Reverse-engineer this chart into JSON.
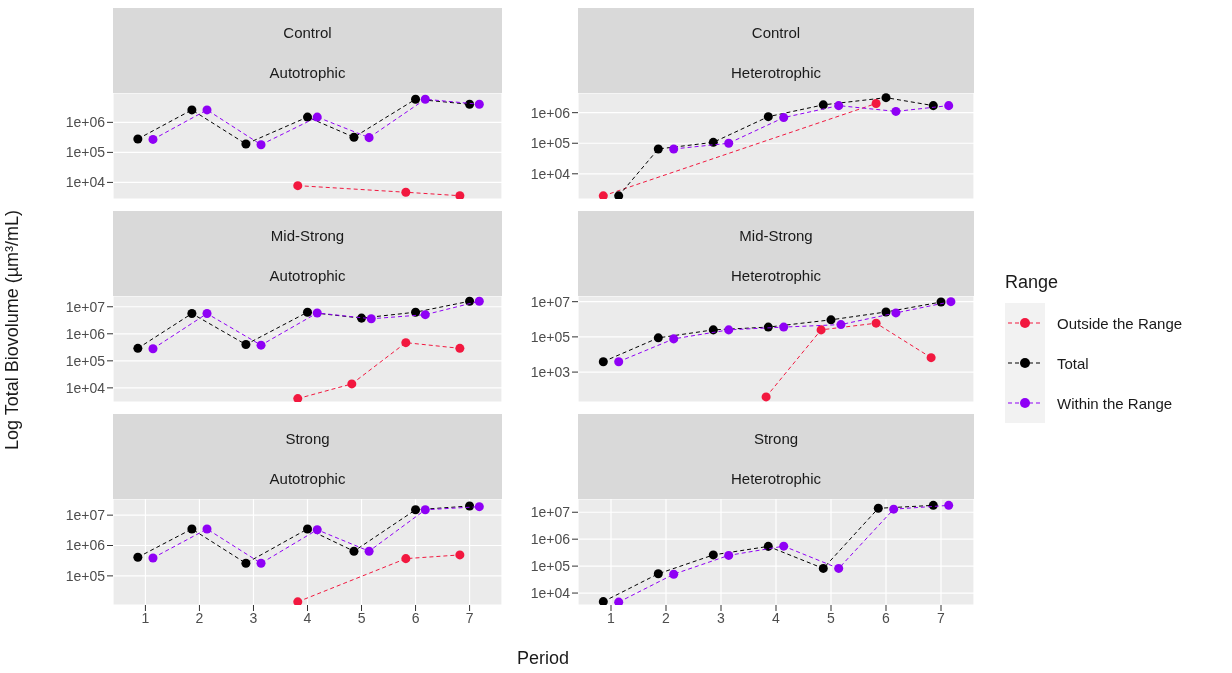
{
  "chart_data": [
    {
      "type": "line",
      "title": "Control",
      "subtitle": "Autotrophic",
      "xlim": [
        0.4,
        7.6
      ],
      "xticks": [
        1,
        2,
        3,
        4,
        5,
        6,
        7
      ],
      "log": true,
      "ylim": [
        2800,
        9500000
      ],
      "yticks": [
        {
          "value": 10000,
          "label": "1e+04"
        },
        {
          "value": 100000,
          "label": "1e+05"
        },
        {
          "value": 1000000,
          "label": "1e+06"
        }
      ],
      "grid": true,
      "marker": "circle",
      "line_style": "dashed",
      "tick_labels": "y",
      "legend": "right",
      "legend_title": "Range",
      "series": [
        {
          "name": "Outside the Range",
          "color": "#f2183f",
          "x": [
            3.82,
            5.82,
            6.82
          ],
          "values": [
            7800,
            4700,
            3600
          ]
        },
        {
          "name": "Total",
          "color": "#000000",
          "x": [
            0.86,
            1.86,
            2.86,
            4,
            4.86,
            6,
            7
          ],
          "values": [
            280000,
            2600000,
            190000,
            1500000,
            320000,
            5900000,
            4000000
          ]
        },
        {
          "name": "Within the Range",
          "color": "#8f00f5",
          "x": [
            1.14,
            2.14,
            3.14,
            4.18,
            5.14,
            6.18,
            7.18
          ],
          "values": [
            270000,
            2600000,
            180000,
            1500000,
            310000,
            5900000,
            4000000
          ]
        }
      ]
    },
    {
      "type": "line",
      "title": "Control",
      "subtitle": "Heterotrophic",
      "xlim": [
        0.4,
        7.6
      ],
      "xticks": [
        1,
        2,
        3,
        4,
        5,
        6,
        7
      ],
      "log": true,
      "ylim": [
        1500,
        4400000
      ],
      "yticks": [
        {
          "value": 10000,
          "label": "1e+04"
        },
        {
          "value": 100000,
          "label": "1e+05"
        },
        {
          "value": 1000000,
          "label": "1e+06"
        }
      ],
      "grid": true,
      "marker": "circle",
      "line_style": "dashed",
      "tick_labels": "y",
      "series": [
        {
          "name": "Outside the Range",
          "color": "#f2183f",
          "x": [
            0.86,
            5.82
          ],
          "values": [
            1900,
            2000000
          ]
        },
        {
          "name": "Total",
          "color": "#000000",
          "x": [
            1.14,
            1.86,
            2.86,
            3.86,
            4.86,
            6,
            6.86
          ],
          "values": [
            1900,
            65000,
            107000,
            740000,
            1800000,
            3100000,
            1700000
          ]
        },
        {
          "name": "Within the Range",
          "color": "#8f00f5",
          "x": [
            2.14,
            3.14,
            4.14,
            5.14,
            6.18,
            7.14
          ],
          "values": [
            65000,
            100000,
            690000,
            1700000,
            1100000,
            1700000
          ]
        }
      ]
    },
    {
      "type": "line",
      "title": "Mid-Strong",
      "subtitle": "Autotrophic",
      "ylabel": "Log Total Biovolume (µm³/mL)",
      "xlim": [
        0.4,
        7.6
      ],
      "xticks": [
        1,
        2,
        3,
        4,
        5,
        6,
        7
      ],
      "log": true,
      "ylim": [
        3000,
        25000000
      ],
      "yticks": [
        {
          "value": 10000,
          "label": "1e+04"
        },
        {
          "value": 100000,
          "label": "1e+05"
        },
        {
          "value": 1000000,
          "label": "1e+06"
        },
        {
          "value": 10000000,
          "label": "1e+07"
        }
      ],
      "grid": true,
      "marker": "circle",
      "line_style": "dashed",
      "tick_labels": "y",
      "series": [
        {
          "name": "Outside the Range",
          "color": "#f2183f",
          "x": [
            3.82,
            4.82,
            5.82,
            6.82
          ],
          "values": [
            4000,
            14000,
            470000,
            290000
          ]
        },
        {
          "name": "Total",
          "color": "#000000",
          "x": [
            0.86,
            1.86,
            2.86,
            4,
            5,
            6,
            7
          ],
          "values": [
            290000,
            5600000,
            400000,
            6300000,
            3800000,
            6300000,
            16000000
          ]
        },
        {
          "name": "Within the Range",
          "color": "#8f00f5",
          "x": [
            1.14,
            2.14,
            3.14,
            4.18,
            5.18,
            6.18,
            7.18
          ],
          "values": [
            280000,
            5600000,
            380000,
            5900000,
            3600000,
            5100000,
            16000000
          ]
        }
      ]
    },
    {
      "type": "line",
      "title": "Mid-Strong",
      "subtitle": "Heterotrophic",
      "xlim": [
        0.4,
        7.6
      ],
      "xticks": [
        1,
        2,
        3,
        4,
        5,
        6,
        7
      ],
      "log": true,
      "ylim": [
        20,
        21000000
      ],
      "yticks": [
        {
          "value": 1000,
          "label": "1e+03"
        },
        {
          "value": 100000,
          "label": "1e+05"
        },
        {
          "value": 10000000,
          "label": "1e+07"
        }
      ],
      "grid": true,
      "marker": "circle",
      "line_style": "dashed",
      "tick_labels": "y",
      "series": [
        {
          "name": "Outside the Range",
          "color": "#f2183f",
          "x": [
            3.82,
            4.82,
            5.82,
            6.82
          ],
          "values": [
            39,
            250000,
            600000,
            6600
          ]
        },
        {
          "name": "Total",
          "color": "#000000",
          "x": [
            0.86,
            1.86,
            2.86,
            3.86,
            5,
            6,
            7
          ],
          "values": [
            3900,
            88000,
            250000,
            360000,
            930000,
            2600000,
            9500000
          ]
        },
        {
          "name": "Within the Range",
          "color": "#8f00f5",
          "x": [
            1.14,
            2.14,
            3.14,
            4.14,
            5.18,
            6.18,
            7.18
          ],
          "values": [
            3900,
            77000,
            250000,
            360000,
            500000,
            2300000,
            10000000
          ]
        }
      ]
    },
    {
      "type": "line",
      "title": "Strong",
      "subtitle": "Autotrophic",
      "xlabel": "Period",
      "xlim": [
        0.4,
        7.6
      ],
      "xticks": [
        1,
        2,
        3,
        4,
        5,
        6,
        7
      ],
      "log": true,
      "ylim": [
        11000,
        34000000
      ],
      "yticks": [
        {
          "value": 100000,
          "label": "1e+05"
        },
        {
          "value": 1000000,
          "label": "1e+06"
        },
        {
          "value": 10000000,
          "label": "1e+07"
        }
      ],
      "grid": true,
      "marker": "circle",
      "line_style": "dashed",
      "series": [
        {
          "name": "Outside the Range",
          "color": "#f2183f",
          "x": [
            3.82,
            5.82,
            6.82
          ],
          "values": [
            14000,
            370000,
            490000
          ]
        },
        {
          "name": "Total",
          "color": "#000000",
          "x": [
            0.86,
            1.86,
            2.86,
            4,
            4.86,
            6,
            7
          ],
          "values": [
            410000,
            3500000,
            260000,
            3500000,
            650000,
            15000000,
            20000000
          ]
        },
        {
          "name": "Within the Range",
          "color": "#8f00f5",
          "x": [
            1.14,
            2.14,
            3.14,
            4.18,
            5.14,
            6.18,
            7.18
          ],
          "values": [
            390000,
            3500000,
            260000,
            3300000,
            650000,
            15000000,
            19000000
          ]
        }
      ]
    },
    {
      "type": "line",
      "title": "Strong",
      "subtitle": "Heterotrophic",
      "xlim": [
        0.4,
        7.6
      ],
      "xticks": [
        1,
        2,
        3,
        4,
        5,
        6,
        7
      ],
      "log": true,
      "ylim": [
        3600,
        31000000
      ],
      "yticks": [
        {
          "value": 10000,
          "label": "1e+04"
        },
        {
          "value": 100000,
          "label": "1e+05"
        },
        {
          "value": 1000000,
          "label": "1e+06"
        },
        {
          "value": 10000000,
          "label": "1e+07"
        }
      ],
      "grid": true,
      "marker": "circle",
      "line_style": "dashed",
      "series": [
        {
          "name": "Total",
          "color": "#000000",
          "x": [
            0.86,
            1.86,
            2.86,
            3.86,
            4.86,
            5.86,
            6.86
          ],
          "values": [
            4800,
            52000,
            260000,
            540000,
            82000,
            14000000,
            18000000
          ]
        },
        {
          "name": "Within the Range",
          "color": "#8f00f5",
          "x": [
            1.14,
            2.14,
            3.14,
            4.14,
            5.14,
            6.14,
            7.14
          ],
          "values": [
            4600,
            50000,
            250000,
            550000,
            82000,
            13000000,
            18000000
          ]
        }
      ]
    }
  ]
}
